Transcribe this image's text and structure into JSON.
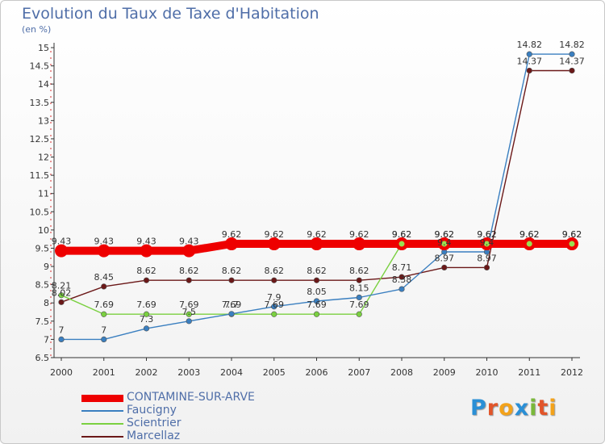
{
  "chart_data": {
    "type": "line",
    "title": "Evolution du Taux de Taxe d'Habitation",
    "ylabel": "(en %)",
    "x": [
      "2000",
      "2001",
      "2002",
      "2003",
      "2004",
      "2005",
      "2006",
      "2007",
      "2008",
      "2009",
      "2010",
      "2011",
      "2012"
    ],
    "y_ticks": [
      "6.5",
      "7",
      "7.5",
      "8",
      "8.5",
      "9",
      "9.5",
      "10",
      "10.5",
      "11",
      "11.5",
      "12",
      "12.5",
      "13",
      "13.5",
      "14",
      "14.5",
      "15"
    ],
    "ylim": [
      6.5,
      15
    ],
    "grid": false,
    "legend_position": "bottom-left",
    "series": [
      {
        "name": "CONTAMINE-SUR-ARVE",
        "color": "#ee0000",
        "values": [
          9.43,
          9.43,
          9.43,
          9.43,
          9.62,
          9.62,
          9.62,
          9.62,
          9.62,
          9.62,
          9.62,
          9.62,
          9.62
        ],
        "labels": [
          "9.43",
          "9.43",
          "9.43",
          "9.43",
          "9.62",
          "9.62",
          "9.62",
          "9.62",
          "9.62",
          "9.62",
          "9.62",
          "9.62",
          "9.62"
        ]
      },
      {
        "name": "Faucigny",
        "color": "#3a7fc0",
        "values": [
          7,
          7,
          7.3,
          7.5,
          7.7,
          7.9,
          8.05,
          8.15,
          8.38,
          9.4,
          9.4,
          14.82,
          14.82
        ],
        "labels": [
          "7",
          "7",
          "7.3",
          "7.5",
          "7.7",
          "7.9",
          "8.05",
          "8.15",
          "8.38",
          "9.4",
          "9.4",
          "14.82",
          "14.82"
        ]
      },
      {
        "name": "Scientrier",
        "color": "#7ad040",
        "values": [
          8.21,
          7.69,
          7.69,
          7.69,
          7.69,
          7.69,
          7.69,
          7.69,
          9.62,
          9.62,
          9.62,
          9.62,
          9.62
        ],
        "labels": [
          "8.21",
          "7.69",
          "7.69",
          "7.69",
          "7.69",
          "7.69",
          "7.69",
          "7.69",
          "9.62",
          "9.62",
          "9.62",
          "9.62",
          "9.62"
        ]
      },
      {
        "name": "Marcellaz",
        "color": "#6b1818",
        "values": [
          8.02,
          8.45,
          8.62,
          8.62,
          8.62,
          8.62,
          8.62,
          8.62,
          8.71,
          8.97,
          8.97,
          14.37,
          14.37
        ],
        "labels": [
          "8.02",
          "8.45",
          "8.62",
          "8.62",
          "8.62",
          "8.62",
          "8.62",
          "8.62",
          "8.71",
          "8.97",
          "8.97",
          "14.37",
          "14.37"
        ]
      }
    ]
  },
  "logo": {
    "letters": [
      "P",
      "r",
      "o",
      "x",
      "i",
      "t",
      "i"
    ],
    "colors": [
      "#2a8fd6",
      "#e2552a",
      "#f3a21a",
      "#2a8fd6",
      "#7ab83a",
      "#e2552a",
      "#f3a21a"
    ]
  }
}
